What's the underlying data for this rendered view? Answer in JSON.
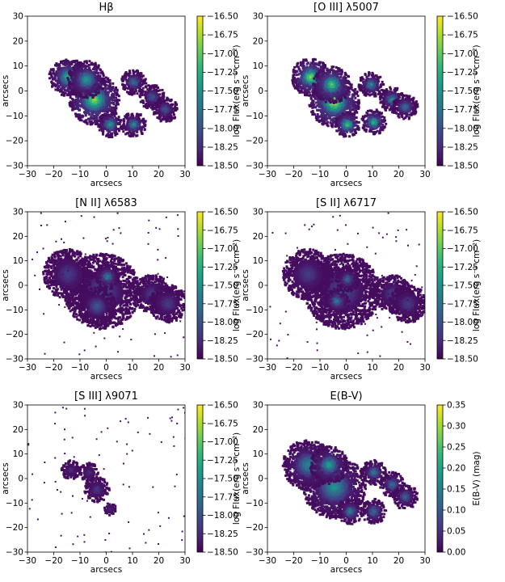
{
  "figure": {
    "panels": [
      {
        "id": "hb",
        "title": "Hβ",
        "cbar": "flux"
      },
      {
        "id": "oiii",
        "title": "[O III]  λ5007",
        "cbar": "flux"
      },
      {
        "id": "nii",
        "title": "[N II]  λ6583",
        "cbar": "flux"
      },
      {
        "id": "sii",
        "title": "[S II]  λ6717",
        "cbar": "flux"
      },
      {
        "id": "siii",
        "title": "[S III]  λ9071",
        "cbar": "flux"
      },
      {
        "id": "ebv",
        "title": "E(B-V)",
        "cbar": "ebv"
      }
    ]
  },
  "chart_data": [
    {
      "type": "heatmap",
      "title": "Hβ",
      "xlabel": "arcsecs",
      "ylabel": "arcsecs",
      "xlim": [
        -30,
        30
      ],
      "ylim": [
        -30,
        30
      ],
      "xticks": [
        -30,
        -20,
        -10,
        0,
        10,
        20,
        30
      ],
      "yticks": [
        -30,
        -20,
        -10,
        0,
        10,
        20,
        30
      ],
      "colorbar": {
        "label": "log Flux(erg s⁻¹ cm⁻²)",
        "min": -18.5,
        "max": -16.5,
        "reversed": true,
        "ticks": [
          "-16.50",
          "-16.75",
          "-17.00",
          "-17.25",
          "-17.50",
          "-17.75",
          "-18.00",
          "-18.25",
          "-18.50"
        ],
        "colormap": "viridis"
      },
      "blobs": [
        {
          "x": -5,
          "y": -3,
          "r": 4,
          "v": 0.9
        },
        {
          "x": -15,
          "y": 6,
          "r": 3,
          "v": 0.7
        },
        {
          "x": -8,
          "y": 5,
          "r": 3,
          "v": 0.6
        },
        {
          "x": 1,
          "y": -13,
          "r": 2,
          "v": 0.6
        },
        {
          "x": 10,
          "y": -13,
          "r": 2,
          "v": 0.5
        },
        {
          "x": 10,
          "y": 4,
          "r": 2,
          "v": 0.4
        },
        {
          "x": 17,
          "y": -2,
          "r": 2,
          "v": 0.3
        },
        {
          "x": 22,
          "y": -7,
          "r": 2,
          "v": 0.3
        }
      ]
    },
    {
      "type": "heatmap",
      "title": "[O III]  λ5007",
      "xlabel": "arcsecs",
      "ylabel": "arcsecs",
      "xlim": [
        -30,
        30
      ],
      "ylim": [
        -30,
        30
      ],
      "xticks": [
        -30,
        -20,
        -10,
        0,
        10,
        20,
        30
      ],
      "yticks": [
        -30,
        -20,
        -10,
        0,
        10,
        20,
        30
      ],
      "colorbar": {
        "label": "log Flux(erg s⁻¹ cm⁻²)",
        "min": -18.5,
        "max": -16.5,
        "reversed": true,
        "ticks": [
          "-16.50",
          "-16.75",
          "-17.00",
          "-17.25",
          "-17.50",
          "-17.75",
          "-18.00",
          "-18.25",
          "-18.50"
        ],
        "colormap": "viridis"
      },
      "blobs": [
        {
          "x": -5,
          "y": -4,
          "r": 4,
          "v": 1.0
        },
        {
          "x": -14,
          "y": 6,
          "r": 3,
          "v": 0.9
        },
        {
          "x": -6,
          "y": 3,
          "r": 3,
          "v": 0.8
        },
        {
          "x": 0,
          "y": -13,
          "r": 2,
          "v": 0.8
        },
        {
          "x": 10,
          "y": -12,
          "r": 2,
          "v": 0.7
        },
        {
          "x": 9,
          "y": 3,
          "r": 2,
          "v": 0.5
        },
        {
          "x": 17,
          "y": -3,
          "r": 2,
          "v": 0.5
        },
        {
          "x": 22,
          "y": -6,
          "r": 2,
          "v": 0.4
        }
      ]
    },
    {
      "type": "heatmap",
      "title": "[N II]  λ6583",
      "xlabel": "arcsecs",
      "ylabel": "arcsecs",
      "xlim": [
        -30,
        30
      ],
      "ylim": [
        -30,
        30
      ],
      "xticks": [
        -30,
        -20,
        -10,
        0,
        10,
        20,
        30
      ],
      "yticks": [
        -30,
        -20,
        -10,
        0,
        10,
        20,
        30
      ],
      "colorbar": {
        "label": "log Flux(erg s⁻¹ cm⁻²)",
        "min": -18.5,
        "max": -16.5,
        "reversed": true,
        "ticks": [
          "-16.50",
          "-16.75",
          "-17.00",
          "-17.25",
          "-17.50",
          "-17.75",
          "-18.00",
          "-18.25",
          "-18.50"
        ],
        "colormap": "viridis"
      },
      "blobs": [
        {
          "x": -2,
          "y": -2,
          "r": 6,
          "v": 0.25
        },
        {
          "x": -15,
          "y": 5,
          "r": 4,
          "v": 0.2
        },
        {
          "x": 0,
          "y": 4,
          "r": 2,
          "v": 0.45
        },
        {
          "x": 17,
          "y": -3,
          "r": 3,
          "v": 0.2
        },
        {
          "x": 23,
          "y": -7,
          "r": 3,
          "v": 0.2
        },
        {
          "x": -4,
          "y": -8,
          "r": 3,
          "v": 0.3
        }
      ]
    },
    {
      "type": "heatmap",
      "title": "[S II]  λ6717",
      "xlabel": "arcsecs",
      "ylabel": "arcsecs",
      "xlim": [
        -30,
        30
      ],
      "ylim": [
        -30,
        30
      ],
      "xticks": [
        -30,
        -20,
        -10,
        0,
        10,
        20,
        30
      ],
      "yticks": [
        -30,
        -20,
        -10,
        0,
        10,
        20,
        30
      ],
      "colorbar": {
        "label": "log Flux(erg s⁻¹ cm⁻²)",
        "min": -18.5,
        "max": -16.5,
        "reversed": true,
        "ticks": [
          "-16.50",
          "-16.75",
          "-17.00",
          "-17.25",
          "-17.50",
          "-17.75",
          "-18.00",
          "-18.25",
          "-18.50"
        ],
        "colormap": "viridis"
      },
      "blobs": [
        {
          "x": -2,
          "y": -2,
          "r": 6,
          "v": 0.25
        },
        {
          "x": -15,
          "y": 5,
          "r": 4,
          "v": 0.2
        },
        {
          "x": -4,
          "y": -6,
          "r": 2,
          "v": 0.45
        },
        {
          "x": 0,
          "y": 3,
          "r": 2,
          "v": 0.35
        },
        {
          "x": 17,
          "y": -3,
          "r": 3,
          "v": 0.2
        },
        {
          "x": 23,
          "y": -7,
          "r": 3,
          "v": 0.2
        }
      ]
    },
    {
      "type": "heatmap",
      "title": "[S III]  λ9071",
      "xlabel": "arcsecs",
      "ylabel": "arcsecs",
      "xlim": [
        -30,
        30
      ],
      "ylim": [
        -30,
        30
      ],
      "xticks": [
        -30,
        -20,
        -10,
        0,
        10,
        20,
        30
      ],
      "yticks": [
        -30,
        -20,
        -10,
        0,
        10,
        20,
        30
      ],
      "colorbar": {
        "label": "log Flux(erg s⁻¹ cm⁻²)",
        "min": -18.5,
        "max": -16.5,
        "reversed": true,
        "ticks": [
          "-16.50",
          "-16.75",
          "-17.00",
          "-17.25",
          "-17.50",
          "-17.75",
          "-18.00",
          "-18.25",
          "-18.50"
        ],
        "colormap": "viridis"
      },
      "blobs": [
        {
          "x": -4,
          "y": -4,
          "r": 2,
          "v": 0.2
        },
        {
          "x": -14,
          "y": 4,
          "r": 1.5,
          "v": 0.15
        },
        {
          "x": -7,
          "y": 3,
          "r": 1.5,
          "v": 0.15
        },
        {
          "x": 1,
          "y": -12,
          "r": 1,
          "v": 0.15
        }
      ]
    },
    {
      "type": "heatmap",
      "title": "E(B-V)",
      "xlabel": "arcsecs",
      "ylabel": "arcsecs",
      "xlim": [
        -30,
        30
      ],
      "ylim": [
        -30,
        30
      ],
      "xticks": [
        -30,
        -20,
        -10,
        0,
        10,
        20,
        30
      ],
      "yticks": [
        -30,
        -20,
        -10,
        0,
        10,
        20,
        30
      ],
      "colorbar": {
        "label": "E(B-V) (mag)",
        "min": 0.0,
        "max": 0.35,
        "reversed": false,
        "ticks": [
          "0.35",
          "0.30",
          "0.25",
          "0.20",
          "0.15",
          "0.10",
          "0.05",
          "0.00"
        ],
        "colormap": "viridis"
      },
      "blobs": [
        {
          "x": -5,
          "y": -3,
          "r": 5,
          "v": 0.55
        },
        {
          "x": -15,
          "y": 6,
          "r": 4,
          "v": 0.5
        },
        {
          "x": -7,
          "y": 6,
          "r": 3,
          "v": 0.6
        },
        {
          "x": 1,
          "y": -13,
          "r": 2,
          "v": 0.45
        },
        {
          "x": 10,
          "y": -13,
          "r": 2,
          "v": 0.4
        },
        {
          "x": 10,
          "y": 3,
          "r": 2,
          "v": 0.45
        },
        {
          "x": 17,
          "y": -2,
          "r": 2,
          "v": 0.4
        },
        {
          "x": 22,
          "y": -7,
          "r": 2,
          "v": 0.35
        }
      ]
    }
  ]
}
